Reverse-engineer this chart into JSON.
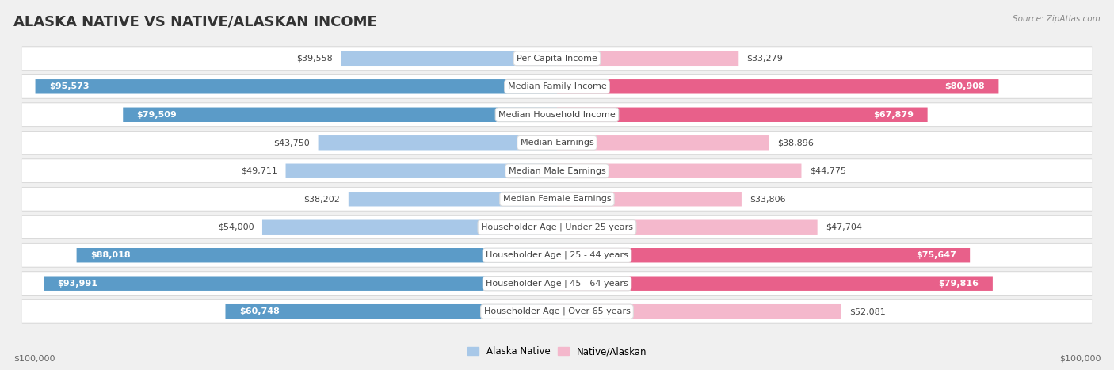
{
  "title": "ALASKA NATIVE VS NATIVE/ALASKAN INCOME",
  "source": "Source: ZipAtlas.com",
  "categories": [
    "Per Capita Income",
    "Median Family Income",
    "Median Household Income",
    "Median Earnings",
    "Median Male Earnings",
    "Median Female Earnings",
    "Householder Age | Under 25 years",
    "Householder Age | 25 - 44 years",
    "Householder Age | 45 - 64 years",
    "Householder Age | Over 65 years"
  ],
  "alaska_native_values": [
    39558,
    95573,
    79509,
    43750,
    49711,
    38202,
    54000,
    88018,
    93991,
    60748
  ],
  "native_alaskan_values": [
    33279,
    80908,
    67879,
    38896,
    44775,
    33806,
    47704,
    75647,
    79816,
    52081
  ],
  "alaska_native_labels": [
    "$39,558",
    "$95,573",
    "$79,509",
    "$43,750",
    "$49,711",
    "$38,202",
    "$54,000",
    "$88,018",
    "$93,991",
    "$60,748"
  ],
  "native_alaskan_labels": [
    "$33,279",
    "$80,908",
    "$67,879",
    "$38,896",
    "$44,775",
    "$33,806",
    "$47,704",
    "$75,647",
    "$79,816",
    "$52,081"
  ],
  "alaska_native_color_light": "#a8c8e8",
  "alaska_native_color_dark": "#5b9bc8",
  "native_alaskan_color_light": "#f4b8cc",
  "native_alaskan_color_dark": "#e8608a",
  "alaska_inside_threshold": 60000,
  "native_inside_threshold": 60000,
  "max_value": 100000,
  "xlabel_left": "$100,000",
  "xlabel_right": "$100,000",
  "legend_alaska": "Alaska Native",
  "legend_native": "Native/Alaskan",
  "background_color": "#f0f0f0",
  "row_bg_color": "#ffffff",
  "title_fontsize": 13,
  "label_fontsize": 8,
  "category_fontsize": 8
}
